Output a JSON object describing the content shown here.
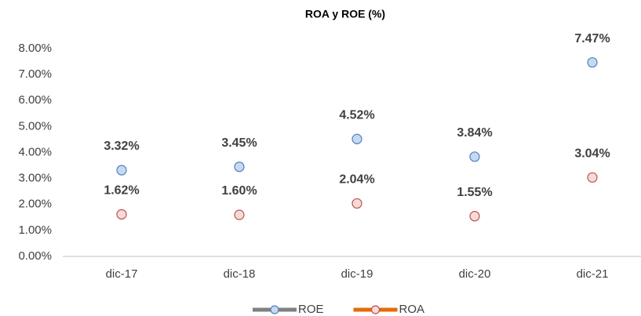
{
  "chart_data": {
    "type": "line",
    "title": "ROA y ROE (%)",
    "categories": [
      "dic-17",
      "dic-18",
      "dic-19",
      "dic-20",
      "dic-21"
    ],
    "series": [
      {
        "name": "ROE",
        "color": "#808080",
        "marker_fill": "#c6d9f1",
        "marker_stroke": "#4f81bd",
        "values": [
          3.32,
          3.45,
          4.52,
          3.84,
          7.47
        ],
        "value_labels": [
          "3.32%",
          "3.45%",
          "4.52%",
          "3.84%",
          "7.47%"
        ]
      },
      {
        "name": "ROA",
        "color": "#e46c0a",
        "marker_fill": "#f2dcdb",
        "marker_stroke": "#c0504d",
        "values": [
          1.62,
          1.6,
          2.04,
          1.55,
          3.04
        ],
        "value_labels": [
          "1.62%",
          "1.60%",
          "2.04%",
          "1.55%",
          "3.04%"
        ]
      }
    ],
    "ylim": [
      0,
      8
    ],
    "yticks": [
      {
        "value": 0,
        "label": "0.00%"
      },
      {
        "value": 1,
        "label": "1.00%"
      },
      {
        "value": 2,
        "label": "2.00%"
      },
      {
        "value": 3,
        "label": "3.00%"
      },
      {
        "value": 4,
        "label": "4.00%"
      },
      {
        "value": 5,
        "label": "5.00%"
      },
      {
        "value": 6,
        "label": "6.00%"
      },
      {
        "value": 7,
        "label": "7.00%"
      },
      {
        "value": 8,
        "label": "8.00%"
      }
    ],
    "grid": false,
    "legend": "bottom"
  }
}
